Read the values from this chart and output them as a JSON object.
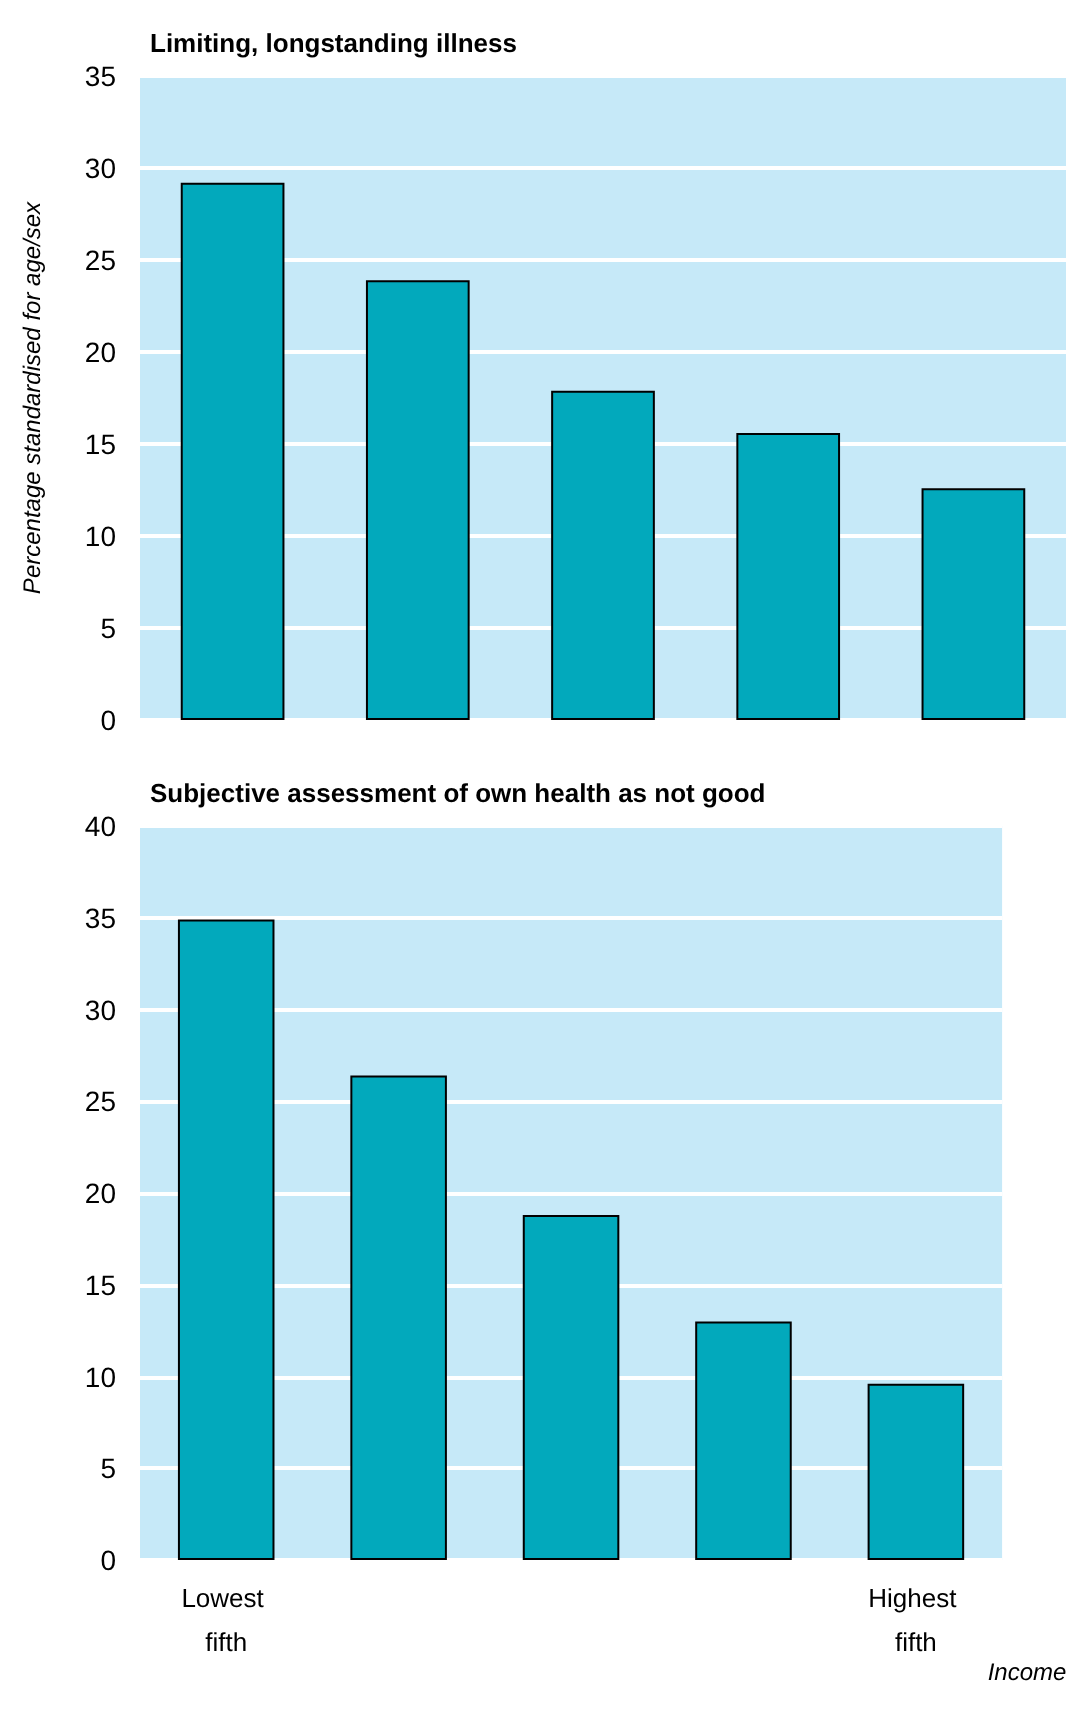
{
  "chart_data": [
    {
      "type": "bar",
      "title": "Limiting, longstanding illness",
      "ylabel": "Percentage standardised for age/sex",
      "categories": [
        "Lowest fifth",
        null,
        null,
        null,
        "Highest fifth"
      ],
      "values": [
        29.2,
        23.9,
        17.9,
        15.6,
        12.6
      ],
      "color": "#02a9bc",
      "ylim": [
        0,
        35
      ],
      "yticks": [
        0,
        5,
        10,
        15,
        20,
        25,
        30,
        35
      ],
      "grid": "y",
      "tick_labels": "y"
    },
    {
      "type": "bar",
      "title": "Subjective assessment of own health as not good",
      "xlabel": "Income",
      "categories": [
        "Lowest fifth",
        null,
        null,
        null,
        "Highest fifth"
      ],
      "values": [
        34.9,
        26.4,
        18.8,
        13.0,
        9.6
      ],
      "color": "#02a9bc",
      "ylim": [
        0,
        40
      ],
      "yticks": [
        0,
        5,
        10,
        15,
        20,
        25,
        30,
        35,
        40
      ],
      "grid": "y"
    }
  ]
}
